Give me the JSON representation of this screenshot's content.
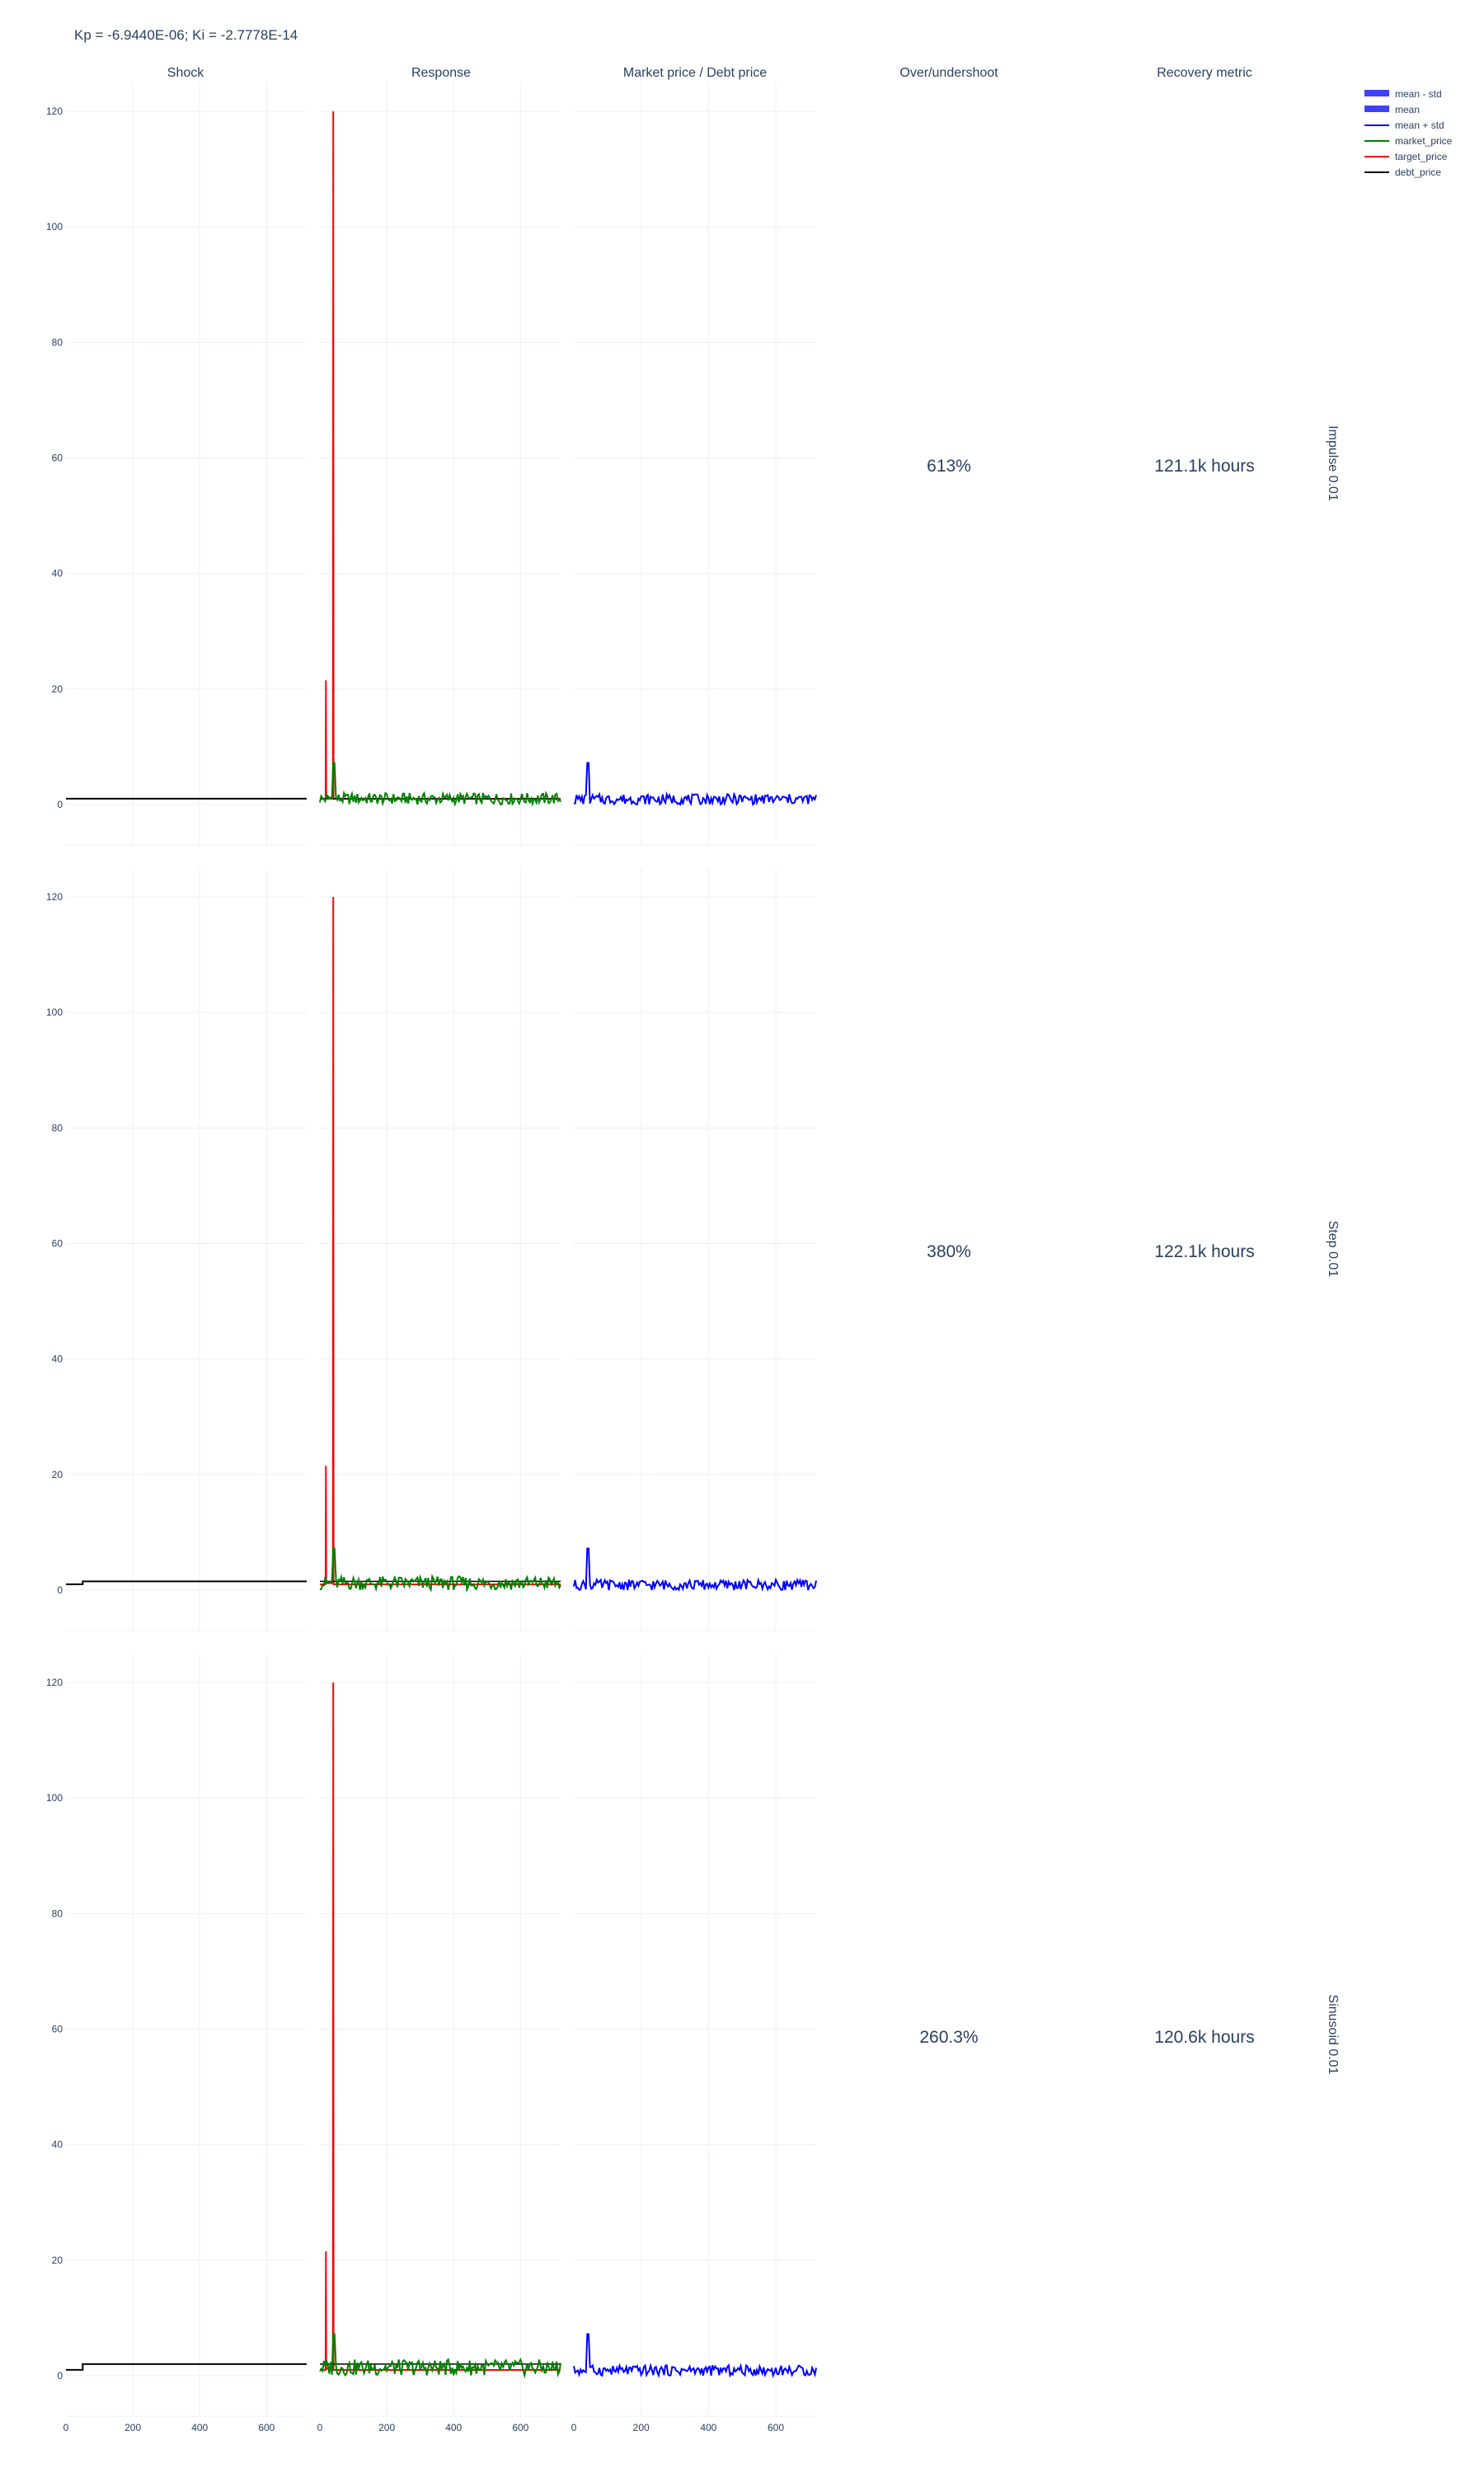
{
  "figure_title": "Kp = -6.9440E-06; Ki = -2.7778E-14",
  "columns": [
    "Shock",
    "Response",
    "Market price / Debt price",
    "Over/undershoot",
    "Recovery metric"
  ],
  "rows": [
    {
      "label": "Impulse 0.01",
      "overshoot": "613%",
      "recovery": "121.1k hours"
    },
    {
      "label": "Step 0.01",
      "overshoot": "380%",
      "recovery": "122.1k hours"
    },
    {
      "label": "Sinusoid 0.01",
      "overshoot": "260.3%",
      "recovery": "120.6k hours"
    }
  ],
  "legend": [
    {
      "name": "mean - std",
      "color": "#0000ff",
      "style": "band"
    },
    {
      "name": "mean",
      "color": "#0000ff",
      "style": "band"
    },
    {
      "name": "mean + std",
      "color": "#0000ff",
      "style": "line"
    },
    {
      "name": "market_price",
      "color": "#008000",
      "style": "line"
    },
    {
      "name": "target_price",
      "color": "#ff0000",
      "style": "line"
    },
    {
      "name": "debt_price",
      "color": "#000000",
      "style": "line"
    }
  ],
  "chart_data": {
    "type": "line",
    "x_range": [
      0,
      720
    ],
    "x_ticks": [
      0,
      200,
      400,
      600
    ],
    "y_range": [
      -7,
      125
    ],
    "y_ticks": [
      0,
      20,
      40,
      60,
      80,
      100,
      120
    ],
    "grid": true,
    "legend_position": "top-right",
    "panels": [
      {
        "row": "Impulse 0.01",
        "shock": {
          "debt_price": {
            "x": [
              0,
              720
            ],
            "y": [
              1.0,
              1.0
            ]
          }
        },
        "response": {
          "target_price_peaks": [
            {
              "x": 18,
              "y": 21.5
            },
            {
              "x": 40,
              "y": 120
            }
          ],
          "market_price_peak": {
            "x": 42,
            "y": 7.2
          },
          "market_price_band": [
            0,
            2.0
          ],
          "debt_price": 1.0
        },
        "ratio": {
          "mean_peak": {
            "x": 42,
            "y": 7.2
          },
          "mean_band": [
            0,
            1.8
          ]
        }
      },
      {
        "row": "Step 0.01",
        "shock": {
          "debt_price": {
            "x": [
              0,
              50,
              50,
              720
            ],
            "y": [
              1.0,
              1.0,
              1.5,
              1.5
            ]
          }
        },
        "response": {
          "target_price_peaks": [
            {
              "x": 18,
              "y": 21.5
            },
            {
              "x": 40,
              "y": 120
            }
          ],
          "market_price_peak": {
            "x": 42,
            "y": 7.2
          },
          "market_price_band": [
            0,
            2.4
          ],
          "debt_price": 1.5
        },
        "ratio": {
          "mean_peak": {
            "x": 42,
            "y": 7.2
          },
          "mean_band": [
            0,
            1.8
          ]
        }
      },
      {
        "row": "Sinusoid 0.01",
        "shock": {
          "debt_price": {
            "x": [
              0,
              50,
              50,
              720
            ],
            "y": [
              1.0,
              1.0,
              2.0,
              2.0
            ]
          }
        },
        "response": {
          "target_price_peaks": [
            {
              "x": 18,
              "y": 21.5
            },
            {
              "x": 40,
              "y": 120
            }
          ],
          "market_price_peak": {
            "x": 42,
            "y": 7.2
          },
          "market_price_band": [
            0,
            2.8
          ],
          "debt_price": 2.0
        },
        "ratio": {
          "mean_peak": {
            "x": 42,
            "y": 7.2
          },
          "mean_band": [
            0,
            1.8
          ]
        }
      }
    ]
  }
}
